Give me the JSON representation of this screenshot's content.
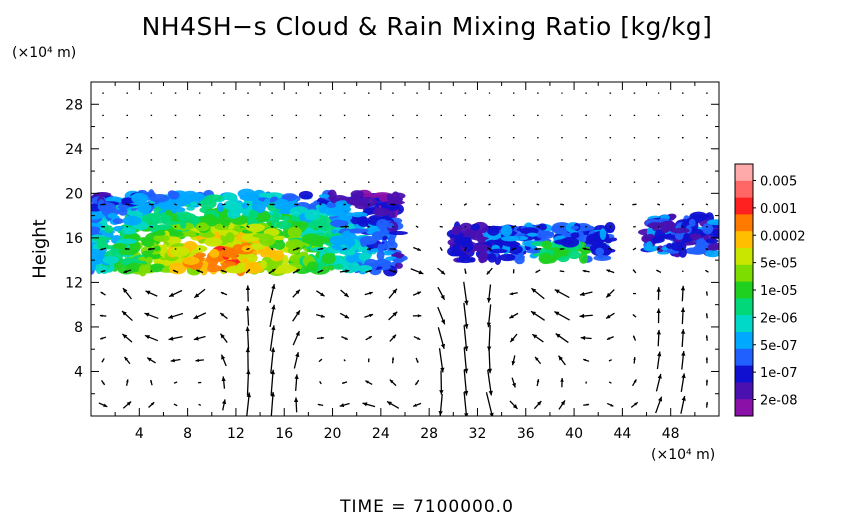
{
  "chart_data": {
    "type": "heatmap",
    "title": "NH4SH−s Cloud & Rain Mixing Ratio [kg/kg]",
    "xlabel": "",
    "x_unit": "(×10⁴ m)",
    "ylabel": "Height",
    "y_unit": "(×10⁴ m)",
    "xlim": [
      0,
      52
    ],
    "ylim": [
      0,
      30
    ],
    "xticks": [
      "4",
      "8",
      "12",
      "16",
      "20",
      "24",
      "28",
      "32",
      "36",
      "40",
      "44",
      "48"
    ],
    "yticks": [
      "4",
      "8",
      "12",
      "16",
      "20",
      "24",
      "28"
    ],
    "grid": false,
    "legend_placement": "right",
    "colorbar": {
      "labels": [
        "0.005",
        "0.001",
        "0.0002",
        "5e-05",
        "1e-05",
        "2e-06",
        "5e-07",
        "1e-07",
        "2e-08"
      ],
      "colors": [
        "#ffaaaa",
        "#ff6666",
        "#ff2020",
        "#ff7a00",
        "#ffbf00",
        "#c8e600",
        "#7ddc00",
        "#20d020",
        "#00d87a",
        "#00d8c8",
        "#00a8ff",
        "#2060ff",
        "#1010d0",
        "#4a10b0",
        "#8a10a8"
      ]
    },
    "cloud_regions": [
      {
        "x_range": [
          0,
          25.5
        ],
        "y_range": [
          13,
          20
        ],
        "max_level": "0.001",
        "core_x": [
          7,
          15
        ],
        "core_y": [
          13,
          15.5
        ]
      },
      {
        "x_range": [
          30,
          43
        ],
        "y_range": [
          14,
          17
        ],
        "max_level": "1e-05"
      },
      {
        "x_range": [
          46,
          52
        ],
        "y_range": [
          14.5,
          18
        ],
        "max_level": "1e-07"
      }
    ],
    "vector_field": {
      "description": "wind vectors",
      "circulation_centers": [
        {
          "x": 5,
          "y": 3
        },
        {
          "x": 24,
          "y": 4
        },
        {
          "x": 38,
          "y": 4
        }
      ]
    }
  },
  "footer": {
    "time_label": "TIME  =  7100000.0"
  }
}
